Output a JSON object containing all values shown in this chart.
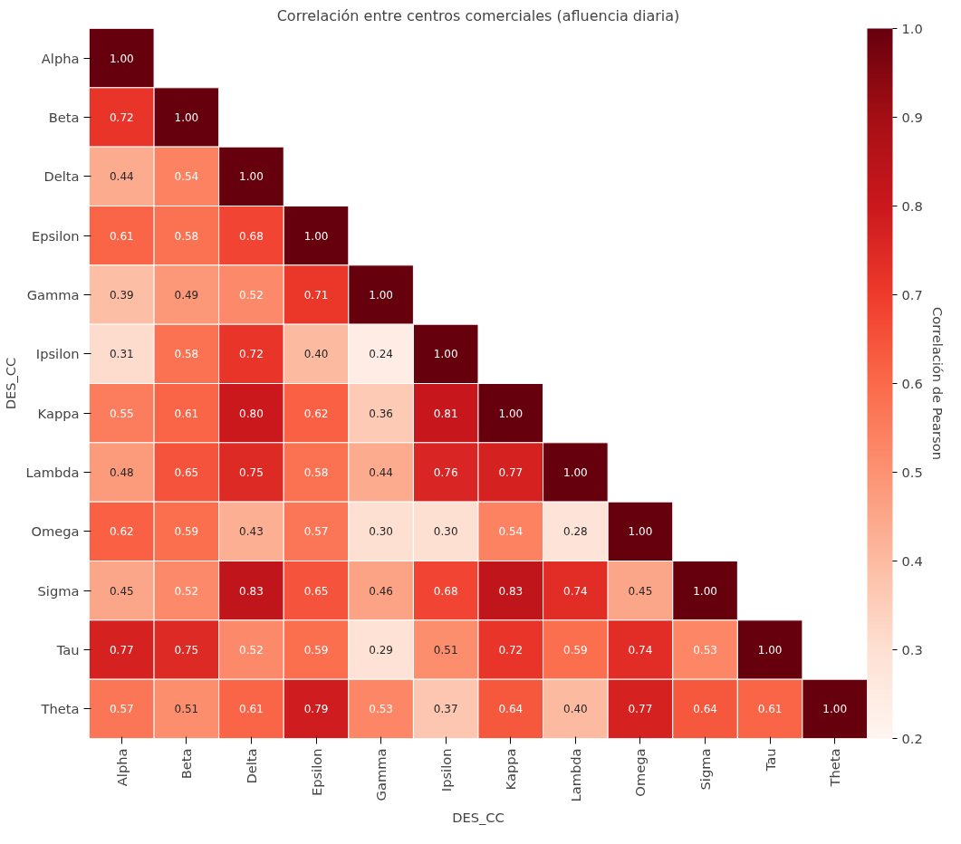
{
  "chart_data": {
    "type": "heatmap",
    "title": "Correlación entre centros comerciales (afluencia diaria)",
    "xlabel": "DES_CC",
    "ylabel": "DES_CC",
    "clabel": "Correlación de Pearson",
    "categories": [
      "Alpha",
      "Beta",
      "Delta",
      "Epsilon",
      "Gamma",
      "Ipsilon",
      "Kappa",
      "Lambda",
      "Omega",
      "Sigma",
      "Tau",
      "Theta"
    ],
    "y_categories": [
      "Alpha",
      "Beta",
      "Delta",
      "Epsilon",
      "Gamma",
      "Ipsilon",
      "Kappa",
      "Lambda",
      "Omega",
      "Sigma",
      "Tau",
      "Theta"
    ],
    "cells": [
      [
        1.0,
        null,
        null,
        null,
        null,
        null,
        null,
        null,
        null,
        null,
        null,
        null
      ],
      [
        0.72,
        1.0,
        null,
        null,
        null,
        null,
        null,
        null,
        null,
        null,
        null,
        null
      ],
      [
        0.44,
        0.54,
        1.0,
        null,
        null,
        null,
        null,
        null,
        null,
        null,
        null,
        null
      ],
      [
        0.61,
        0.58,
        0.68,
        1.0,
        null,
        null,
        null,
        null,
        null,
        null,
        null,
        null
      ],
      [
        0.39,
        0.49,
        0.52,
        0.71,
        1.0,
        null,
        null,
        null,
        null,
        null,
        null,
        null
      ],
      [
        0.31,
        0.58,
        0.72,
        0.4,
        0.24,
        1.0,
        null,
        null,
        null,
        null,
        null,
        null
      ],
      [
        0.55,
        0.61,
        0.8,
        0.62,
        0.36,
        0.81,
        1.0,
        null,
        null,
        null,
        null,
        null
      ],
      [
        0.48,
        0.65,
        0.75,
        0.58,
        0.44,
        0.76,
        0.77,
        1.0,
        null,
        null,
        null,
        null
      ],
      [
        0.62,
        0.59,
        0.43,
        0.57,
        0.3,
        0.3,
        0.54,
        0.28,
        1.0,
        null,
        null,
        null
      ],
      [
        0.45,
        0.52,
        0.83,
        0.65,
        0.46,
        0.68,
        0.83,
        0.74,
        0.45,
        1.0,
        null,
        null
      ],
      [
        0.77,
        0.75,
        0.52,
        0.59,
        0.29,
        0.51,
        0.72,
        0.59,
        0.74,
        0.53,
        1.0,
        null
      ],
      [
        0.57,
        0.51,
        0.61,
        0.79,
        0.53,
        0.37,
        0.64,
        0.4,
        0.77,
        0.64,
        0.61,
        1.0
      ]
    ],
    "cell_labels": [
      [
        "1.00",
        null,
        null,
        null,
        null,
        null,
        null,
        null,
        null,
        null,
        null,
        null
      ],
      [
        "0.72",
        "1.00",
        null,
        null,
        null,
        null,
        null,
        null,
        null,
        null,
        null,
        null
      ],
      [
        "0.44",
        "0.54",
        "1.00",
        null,
        null,
        null,
        null,
        null,
        null,
        null,
        null,
        null
      ],
      [
        "0.61",
        "0.58",
        "0.68",
        "1.00",
        null,
        null,
        null,
        null,
        null,
        null,
        null,
        null
      ],
      [
        "0.39",
        "0.49",
        "0.52",
        "0.71",
        "1.00",
        null,
        null,
        null,
        null,
        null,
        null,
        null
      ],
      [
        "0.31",
        "0.58",
        "0.72",
        "0.40",
        "0.24",
        "1.00",
        null,
        null,
        null,
        null,
        null,
        null
      ],
      [
        "0.55",
        "0.61",
        "0.80",
        "0.62",
        "0.36",
        "0.81",
        "1.00",
        null,
        null,
        null,
        null,
        null
      ],
      [
        "0.48",
        "0.65",
        "0.75",
        "0.58",
        "0.44",
        "0.76",
        "0.77",
        "1.00",
        null,
        null,
        null,
        null
      ],
      [
        "0.62",
        "0.59",
        "0.43",
        "0.57",
        "0.30",
        "0.30",
        "0.54",
        "0.28",
        "1.00",
        null,
        null,
        null
      ],
      [
        "0.45",
        "0.52",
        "0.83",
        "0.65",
        "0.46",
        "0.68",
        "0.83",
        "0.74",
        "0.45",
        "1.00",
        null,
        null
      ],
      [
        "0.77",
        "0.75",
        "0.52",
        "0.59",
        "0.29",
        "0.51",
        "0.72",
        "0.59",
        "0.74",
        "0.53",
        "1.00",
        null
      ],
      [
        "0.57",
        "0.51",
        "0.61",
        "0.79",
        "0.53",
        "0.37",
        "0.64",
        "0.40",
        "0.77",
        "0.64",
        "0.61",
        "1.00"
      ]
    ],
    "clim": [
      0.2,
      1.0
    ],
    "cticks": [
      {
        "value": 0.2,
        "label": "0.2"
      },
      {
        "value": 0.3,
        "label": "0.3"
      },
      {
        "value": 0.4,
        "label": "0.4"
      },
      {
        "value": 0.5,
        "label": "0.5"
      },
      {
        "value": 0.6,
        "label": "0.6"
      },
      {
        "value": 0.7,
        "label": "0.7"
      },
      {
        "value": 0.8,
        "label": "0.8"
      },
      {
        "value": 0.9,
        "label": "0.9"
      },
      {
        "value": 1.0,
        "label": "1.0"
      }
    ]
  }
}
